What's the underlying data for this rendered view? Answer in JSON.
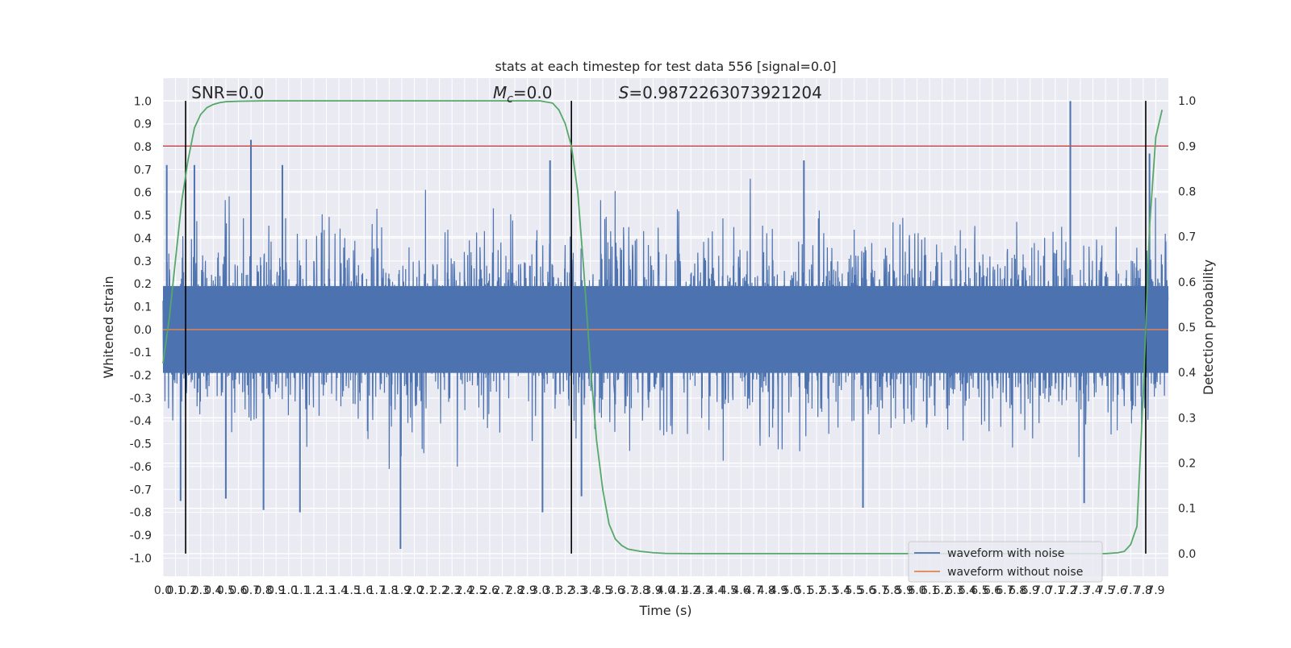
{
  "chart_data": {
    "type": "line",
    "title": "stats at each timestep for test data 556 [signal=0.0]",
    "xlabel": "Time (s)",
    "ylabel_left": "Whitened strain",
    "ylabel_right": "Detection probability",
    "xlim": [
      0.0,
      8.0
    ],
    "ylim_left": [
      -1.08,
      1.1
    ],
    "ylim_right": [
      -0.05,
      1.05
    ],
    "x_ticks": [
      "0.0",
      "0.1",
      "0.2",
      "0.3",
      "0.4",
      "0.5",
      "0.6",
      "0.7",
      "0.8",
      "0.9",
      "1.0",
      "1.1",
      "1.2",
      "1.3",
      "1.4",
      "1.5",
      "1.6",
      "1.7",
      "1.8",
      "1.9",
      "2.0",
      "2.1",
      "2.2",
      "2.3",
      "2.4",
      "2.5",
      "2.6",
      "2.7",
      "2.8",
      "2.9",
      "3.0",
      "3.1",
      "3.2",
      "3.3",
      "3.4",
      "3.5",
      "3.6",
      "3.7",
      "3.8",
      "3.9",
      "4.0",
      "4.1",
      "4.2",
      "4.3",
      "4.4",
      "4.5",
      "4.6",
      "4.7",
      "4.8",
      "4.9",
      "5.0",
      "5.1",
      "5.2",
      "5.3",
      "5.4",
      "5.5",
      "5.6",
      "5.7",
      "5.8",
      "5.9",
      "6.0",
      "6.1",
      "6.2",
      "6.3",
      "6.4",
      "6.5",
      "6.6",
      "6.7",
      "6.8",
      "6.9",
      "7.0",
      "7.1",
      "7.2",
      "7.3",
      "7.4",
      "7.5",
      "7.6",
      "7.7",
      "7.8",
      "7.9"
    ],
    "y_ticks_left": [
      "1.0",
      "0.9",
      "0.8",
      "0.7",
      "0.6",
      "0.5",
      "0.4",
      "0.3",
      "0.2",
      "0.1",
      "0.0",
      "-0.1",
      "-0.2",
      "-0.3",
      "-0.4",
      "-0.5",
      "-0.6",
      "-0.7",
      "-0.8",
      "-0.9",
      "-1.0"
    ],
    "y_ticks_right": [
      "1.0",
      "0.9",
      "0.8",
      "0.7",
      "0.6",
      "0.5",
      "0.4",
      "0.3",
      "0.2",
      "0.1",
      "0.0"
    ],
    "annotations": [
      {
        "html": "SNR=0.0",
        "x": 0.2
      },
      {
        "html": "<tspan font-style='italic'>M</tspan><tspan font-style='italic' font-size='14' dy='5'>c</tspan><tspan dy='-5'>=0.0</tspan>",
        "x": 2.6
      },
      {
        "html": "<tspan font-style='italic'>S</tspan>=0.9872263073921204",
        "x": 3.6
      }
    ],
    "vlines_x": [
      0.18,
      3.25,
      7.82
    ],
    "hline_threshold_right": 0.9,
    "series": [
      {
        "name": "waveform with noise",
        "color": "#4c72b0",
        "kind": "noise",
        "envelope_typical": 0.4,
        "max_positive": 1.0,
        "min_negative": -0.96,
        "spikes": [
          [
            0.03,
            0.72
          ],
          [
            0.25,
            0.72
          ],
          [
            0.7,
            0.83
          ],
          [
            0.95,
            0.72
          ],
          [
            3.08,
            0.74
          ],
          [
            5.1,
            0.74
          ],
          [
            7.22,
            1.0
          ],
          [
            7.85,
            0.77
          ],
          [
            0.14,
            -0.75
          ],
          [
            0.5,
            -0.74
          ],
          [
            0.8,
            -0.79
          ],
          [
            1.09,
            -0.8
          ],
          [
            1.89,
            -0.96
          ],
          [
            3.02,
            -0.8
          ],
          [
            5.57,
            -0.78
          ],
          [
            7.33,
            -0.76
          ],
          [
            3.33,
            -0.73
          ]
        ]
      },
      {
        "name": "waveform without noise",
        "color": "#dd8452",
        "kind": "flat",
        "value": 0.0
      },
      {
        "name": "detection probability",
        "color": "#55a868",
        "axis": "right",
        "x": [
          0.0,
          0.05,
          0.1,
          0.15,
          0.2,
          0.25,
          0.3,
          0.35,
          0.4,
          0.45,
          0.5,
          0.6,
          0.8,
          1.5,
          2.5,
          3.0,
          3.1,
          3.15,
          3.2,
          3.25,
          3.3,
          3.35,
          3.4,
          3.45,
          3.5,
          3.55,
          3.6,
          3.65,
          3.7,
          3.8,
          3.9,
          4.0,
          4.2,
          5.0,
          6.0,
          7.0,
          7.5,
          7.6,
          7.65,
          7.7,
          7.75,
          7.8,
          7.85,
          7.9,
          7.95
        ],
        "y": [
          0.42,
          0.52,
          0.65,
          0.78,
          0.87,
          0.94,
          0.97,
          0.985,
          0.992,
          0.996,
          0.998,
          0.999,
          1.0,
          1.0,
          1.0,
          1.0,
          0.995,
          0.98,
          0.95,
          0.9,
          0.8,
          0.62,
          0.42,
          0.25,
          0.14,
          0.065,
          0.032,
          0.018,
          0.01,
          0.005,
          0.002,
          0.0005,
          0.0,
          0.0,
          0.0,
          0.0,
          0.0,
          0.002,
          0.005,
          0.02,
          0.06,
          0.35,
          0.72,
          0.92,
          0.98
        ]
      },
      {
        "name": "threshold",
        "color": "#c44e52",
        "kind": "hline",
        "axis": "right",
        "value": 0.9
      }
    ],
    "legend": {
      "placement": "lower-right",
      "entries": [
        "waveform with noise",
        "waveform without noise"
      ]
    },
    "grid": true
  }
}
